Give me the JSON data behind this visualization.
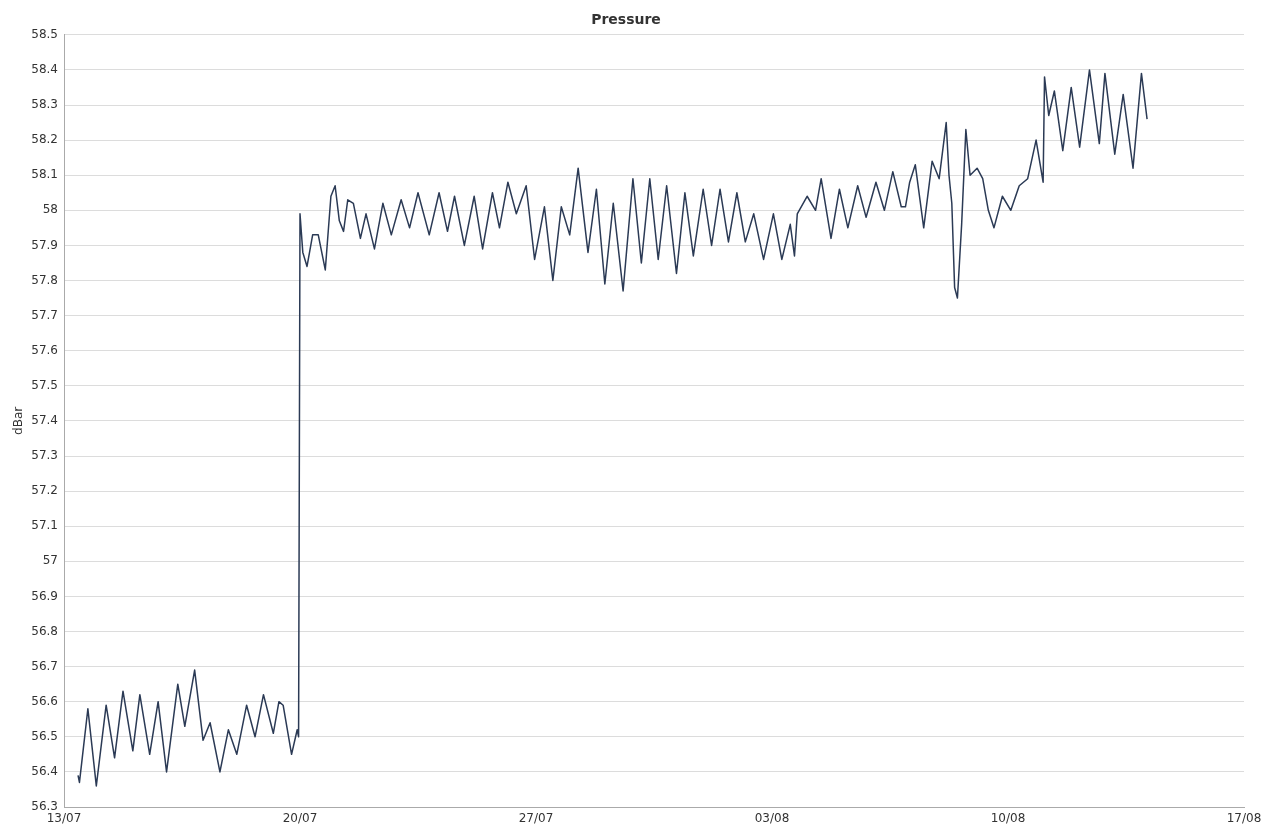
{
  "chart_data": {
    "type": "line",
    "title": "Pressure",
    "ylabel": "dBar",
    "xlim": [
      "--07-13",
      "--08-17"
    ],
    "xticks": [
      {
        "value": "--07-13",
        "label": "13/07"
      },
      {
        "value": "--07-20",
        "label": "20/07"
      },
      {
        "value": "--07-27",
        "label": "27/07"
      },
      {
        "value": "--08-03",
        "label": "03/08"
      },
      {
        "value": "--08-10",
        "label": "10/08"
      },
      {
        "value": "--08-17",
        "label": "17/08"
      }
    ],
    "ylim": [
      56.3,
      58.5
    ],
    "yticks": [
      56.3,
      56.4,
      56.5,
      56.6,
      56.7,
      56.8,
      56.9,
      57,
      57.1,
      57.2,
      57.3,
      57.4,
      57.5,
      57.6,
      57.7,
      57.8,
      57.9,
      58,
      58.1,
      58.2,
      58.3,
      58.4,
      58.5
    ],
    "grid": "y",
    "legend": false,
    "marker": "none",
    "line_style": "solid",
    "series": [
      {
        "color": "#2b3a55",
        "x": [
          "--07-13T10:00",
          "--07-13T11:00",
          "--07-13T17:00",
          "--07-13T23:00",
          "--07-14T06:00",
          "--07-14T12:00",
          "--07-14T18:00",
          "--07-15T01:00",
          "--07-15T06:00",
          "--07-15T13:00",
          "--07-15T19:00",
          "--07-16T01:00",
          "--07-16T09:00",
          "--07-16T14:00",
          "--07-16T21:00",
          "--07-17T03:00",
          "--07-17T08:00",
          "--07-17T15:00",
          "--07-17T21:00",
          "--07-18T03:00",
          "--07-18T10:00",
          "--07-18T16:00",
          "--07-18T22:00",
          "--07-19T05:00",
          "--07-19T09:00",
          "--07-19T12:00",
          "--07-19T18:00",
          "--07-19T22:00",
          "--07-19T23:00",
          "--07-20T00:00",
          "--07-20T02:00",
          "--07-20T05:00",
          "--07-20T09:00",
          "--07-20T13:00",
          "--07-20T18:00",
          "--07-20T22:00",
          "--07-21T01:00",
          "--07-21T04:00",
          "--07-21T07:00",
          "--07-21T10:00",
          "--07-21T14:00",
          "--07-21T19:00",
          "--07-21T23:00",
          "--07-22T05:00",
          "--07-22T11:00",
          "--07-22T17:00",
          "--07-23T00:00",
          "--07-23T06:00",
          "--07-23T12:00",
          "--07-23T20:00",
          "--07-24T03:00",
          "--07-24T09:00",
          "--07-24T14:00",
          "--07-24T21:00",
          "--07-25T04:00",
          "--07-25T10:00",
          "--07-25T17:00",
          "--07-25T22:00",
          "--07-26T04:00",
          "--07-26T10:00",
          "--07-26T17:00",
          "--07-26T23:00",
          "--07-27T06:00",
          "--07-27T12:00",
          "--07-27T18:00",
          "--07-28T00:00",
          "--07-28T06:00",
          "--07-28T13:00",
          "--07-28T19:00",
          "--07-29T01:00",
          "--07-29T07:00",
          "--07-29T14:00",
          "--07-29T21:00",
          "--07-30T03:00",
          "--07-30T09:00",
          "--07-30T15:00",
          "--07-30T21:00",
          "--07-31T04:00",
          "--07-31T10:00",
          "--07-31T16:00",
          "--07-31T23:00",
          "--08-01T05:00",
          "--08-01T11:00",
          "--08-01T17:00",
          "--08-01T23:00",
          "--08-02T05:00",
          "--08-02T11:00",
          "--08-02T18:00",
          "--08-03T01:00",
          "--08-03T07:00",
          "--08-03T13:00",
          "--08-03T16:00",
          "--08-03T18:00",
          "--08-04T01:00",
          "--08-04T07:00",
          "--08-04T11:00",
          "--08-04T18:00",
          "--08-05T00:00",
          "--08-05T06:00",
          "--08-05T13:00",
          "--08-05T19:00",
          "--08-06T02:00",
          "--08-06T08:00",
          "--08-06T14:00",
          "--08-06T20:00",
          "--08-06T23:00",
          "--08-07T02:00",
          "--08-07T06:00",
          "--08-07T12:00",
          "--08-07T18:00",
          "--08-07T23:00",
          "--08-08T04:00",
          "--08-08T06:00",
          "--08-08T08:00",
          "--08-08T10:00",
          "--08-08T12:00",
          "--08-08T15:00",
          "--08-08T18:00",
          "--08-08T21:00",
          "--08-09T02:00",
          "--08-09T06:00",
          "--08-09T10:00",
          "--08-09T14:00",
          "--08-09T20:00",
          "--08-10T02:00",
          "--08-10T08:00",
          "--08-10T14:00",
          "--08-10T20:00",
          "--08-11T01:00",
          "--08-11T02:00",
          "--08-11T05:00",
          "--08-11T09:00",
          "--08-11T15:00",
          "--08-11T21:00",
          "--08-12T03:00",
          "--08-12T10:00",
          "--08-12T17:00",
          "--08-12T21:00",
          "--08-13T04:00",
          "--08-13T10:00",
          "--08-13T17:00",
          "--08-13T23:00",
          "--08-14T03:00"
        ],
        "values": [
          56.39,
          56.37,
          56.58,
          56.36,
          56.59,
          56.44,
          56.63,
          56.46,
          56.62,
          56.45,
          56.6,
          56.4,
          56.65,
          56.53,
          56.69,
          56.49,
          56.54,
          56.4,
          56.52,
          56.45,
          56.59,
          56.5,
          56.62,
          56.51,
          56.6,
          56.59,
          56.45,
          56.52,
          56.5,
          57.99,
          57.88,
          57.84,
          57.93,
          57.93,
          57.83,
          58.04,
          58.07,
          57.97,
          57.94,
          58.03,
          58.02,
          57.92,
          57.99,
          57.89,
          58.02,
          57.93,
          58.03,
          57.95,
          58.05,
          57.93,
          58.05,
          57.94,
          58.04,
          57.9,
          58.04,
          57.89,
          58.05,
          57.95,
          58.08,
          57.99,
          58.07,
          57.86,
          58.01,
          57.8,
          58.01,
          57.93,
          58.12,
          57.88,
          58.06,
          57.79,
          58.02,
          57.77,
          58.09,
          57.85,
          58.09,
          57.86,
          58.07,
          57.82,
          58.05,
          57.87,
          58.06,
          57.9,
          58.06,
          57.91,
          58.05,
          57.91,
          57.99,
          57.86,
          57.99,
          57.86,
          57.96,
          57.87,
          57.99,
          58.04,
          58,
          58.09,
          57.92,
          58.06,
          57.95,
          58.07,
          57.98,
          58.08,
          58,
          58.11,
          58.01,
          58.01,
          58.08,
          58.13,
          57.95,
          58.14,
          58.09,
          58.25,
          58.1,
          58.02,
          57.78,
          57.75,
          57.96,
          58.23,
          58.1,
          58.12,
          58.09,
          58,
          57.95,
          58.04,
          58,
          58.07,
          58.09,
          58.2,
          58.08,
          58.38,
          58.27,
          58.34,
          58.17,
          58.35,
          58.18,
          58.4,
          58.19,
          58.39,
          58.16,
          58.33,
          58.12,
          58.39,
          58.26
        ]
      }
    ]
  }
}
